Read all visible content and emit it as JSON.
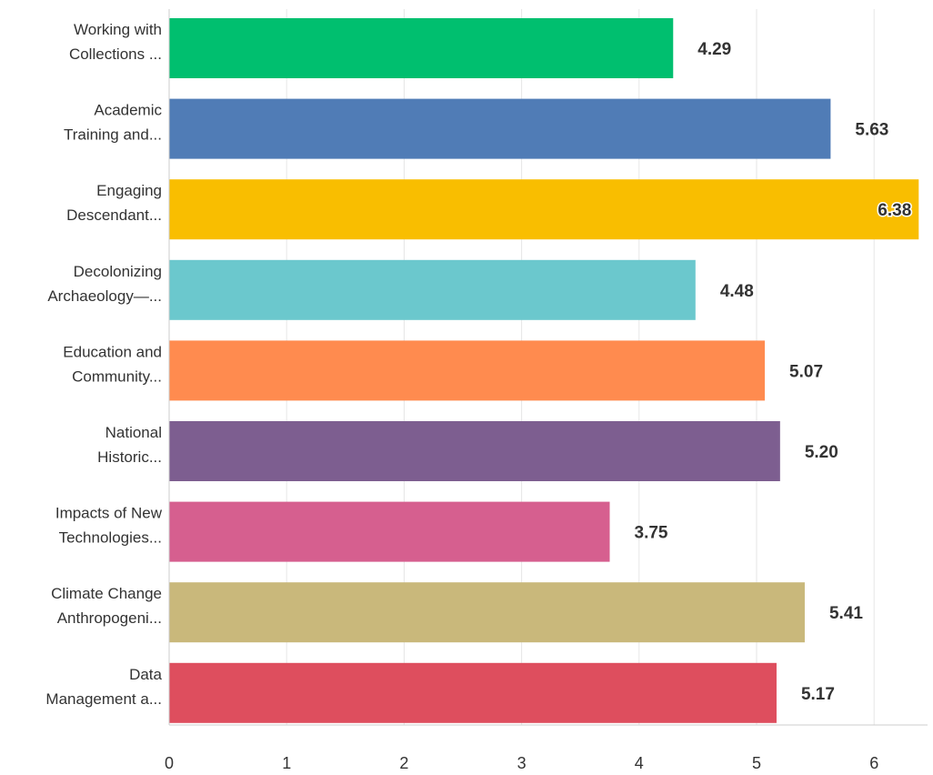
{
  "chart_data": {
    "type": "bar",
    "orientation": "horizontal",
    "categories": [
      [
        "Working with",
        "Collections ..."
      ],
      [
        "Academic",
        "Training and..."
      ],
      [
        "Engaging",
        "Descendant..."
      ],
      [
        "Decolonizing",
        "Archaeology—..."
      ],
      [
        "Education and",
        "Community..."
      ],
      [
        "National",
        "Historic..."
      ],
      [
        "Impacts of New",
        "Technologies..."
      ],
      [
        "Climate Change",
        "Anthropogeni..."
      ],
      [
        "Data",
        "Management a..."
      ]
    ],
    "values": [
      4.29,
      5.63,
      6.38,
      4.48,
      5.07,
      5.2,
      3.75,
      5.41,
      5.17
    ],
    "value_labels": [
      "4.29",
      "5.63",
      "6.38",
      "4.48",
      "5.07",
      "5.20",
      "3.75",
      "5.41",
      "5.17"
    ],
    "colors": [
      "#00bf6f",
      "#507cb6",
      "#f9be00",
      "#6bc8cd",
      "#ff8b4f",
      "#7d5e90",
      "#d65f8f",
      "#c9b87b",
      "#de4e5e"
    ],
    "x_ticks": [
      "0",
      "1",
      "2",
      "3",
      "4",
      "5",
      "6"
    ],
    "xlim": [
      0,
      6.5
    ],
    "grid": true,
    "legend": "none",
    "title": "",
    "xlabel": "",
    "ylabel": ""
  }
}
